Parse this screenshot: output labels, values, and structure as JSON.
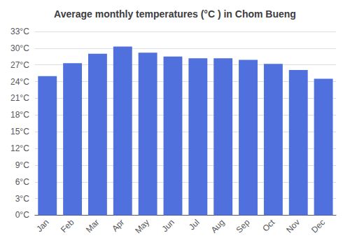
{
  "chart_data": {
    "type": "bar",
    "title": "Average monthly temperatures (°C ) in Chom Bueng",
    "categories": [
      "Jan",
      "Feb",
      "Mar",
      "Apr",
      "May",
      "Jun",
      "Jul",
      "Aug",
      "Sep",
      "Oct",
      "Nov",
      "Dec"
    ],
    "values": [
      25.0,
      27.3,
      29.0,
      30.3,
      29.2,
      28.5,
      28.2,
      28.2,
      27.9,
      27.2,
      26.1,
      24.5
    ],
    "ylim": [
      0,
      33
    ],
    "yticks": [
      {
        "value": 0,
        "label": "0°C"
      },
      {
        "value": 3,
        "label": "3°C"
      },
      {
        "value": 6,
        "label": "6°C"
      },
      {
        "value": 9,
        "label": "9°C"
      },
      {
        "value": 12,
        "label": "12°C"
      },
      {
        "value": 15,
        "label": "15°C"
      },
      {
        "value": 18,
        "label": "18°C"
      },
      {
        "value": 21,
        "label": "21°C"
      },
      {
        "value": 24,
        "label": "24°C"
      },
      {
        "value": 27,
        "label": "27°C"
      },
      {
        "value": 30,
        "label": "30°C"
      },
      {
        "value": 33,
        "label": "33°C"
      }
    ],
    "grid": true
  }
}
